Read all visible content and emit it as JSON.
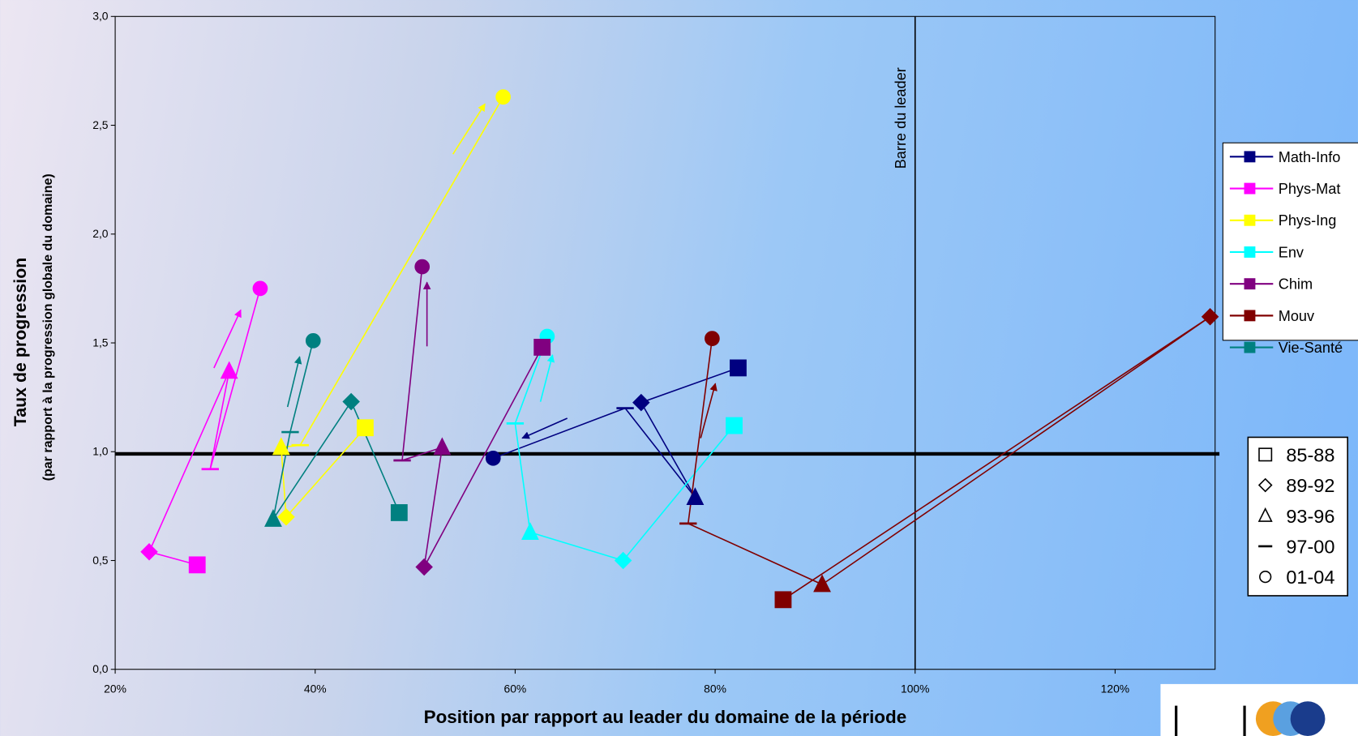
{
  "chart_data": {
    "type": "line-scatter",
    "x_label": "Position par rapport au leader du domaine de la période",
    "y_label": "Taux de progression",
    "y_sublabel": "(par rapport à la progression globale du domaine)",
    "xlim": [
      20,
      130
    ],
    "xticks": [
      {
        "value": 20,
        "label": "20%"
      },
      {
        "value": 40,
        "label": "40%"
      },
      {
        "value": 60,
        "label": "60%"
      },
      {
        "value": 80,
        "label": "80%"
      },
      {
        "value": 100,
        "label": "100%"
      },
      {
        "value": 120,
        "label": "120%"
      }
    ],
    "ylim": [
      0,
      3
    ],
    "yticks": [
      {
        "value": 0,
        "label": "0,0"
      },
      {
        "value": 0.5,
        "label": "0,5"
      },
      {
        "value": 1,
        "label": "1,0"
      },
      {
        "value": 1.5,
        "label": "1,5"
      },
      {
        "value": 2,
        "label": "2,0"
      },
      {
        "value": 2.5,
        "label": "2,5"
      },
      {
        "value": 3,
        "label": "3,0"
      }
    ],
    "leader_line": {
      "x": 100,
      "label": "Barre du leader"
    },
    "reference_y": 0.99,
    "periods": [
      {
        "label": "85-88",
        "marker": "square"
      },
      {
        "label": "89-92",
        "marker": "diamond"
      },
      {
        "label": "93-96",
        "marker": "triangle"
      },
      {
        "label": "97-00",
        "marker": "dash"
      },
      {
        "label": "01-04",
        "marker": "circle"
      }
    ],
    "series": [
      {
        "name": "Math-Info",
        "color": "#000080",
        "x": [
          82.3,
          72.6,
          78.0,
          71,
          57.8
        ],
        "values": [
          1.385,
          1.226,
          0.79,
          1.2,
          0.97
        ]
      },
      {
        "name": "Phys-Mat",
        "color": "#FF00FF",
        "x": [
          28.2,
          23.4,
          31.4,
          29.5,
          34.5
        ],
        "values": [
          0.48,
          0.54,
          1.37,
          0.92,
          1.75
        ]
      },
      {
        "name": "Phys-Ing",
        "color": "#FFFF00",
        "x": [
          45.0,
          37.1,
          36.6,
          38.5,
          58.8
        ],
        "values": [
          1.11,
          0.7,
          1.02,
          1.03,
          2.63
        ]
      },
      {
        "name": "Env",
        "color": "#00FFFF",
        "x": [
          81.9,
          70.8,
          61.5,
          60.0,
          63.2
        ],
        "values": [
          1.12,
          0.5,
          0.63,
          1.13,
          1.53
        ]
      },
      {
        "name": "Chim",
        "color": "#800080",
        "x": [
          62.7,
          50.9,
          52.7,
          48.7,
          50.7
        ],
        "values": [
          1.48,
          0.47,
          1.02,
          0.96,
          1.85
        ]
      },
      {
        "name": "Mouv",
        "color": "#800000",
        "x": [
          86.8,
          129.5,
          90.7,
          77.3,
          79.7
        ],
        "values": [
          0.32,
          1.62,
          0.39,
          0.67,
          1.52
        ]
      },
      {
        "name": "Vie-Santé",
        "color": "#008080",
        "x": [
          48.4,
          43.6,
          35.8,
          37.5,
          39.8
        ],
        "values": [
          0.72,
          1.23,
          0.69,
          1.09,
          1.51
        ]
      }
    ]
  }
}
